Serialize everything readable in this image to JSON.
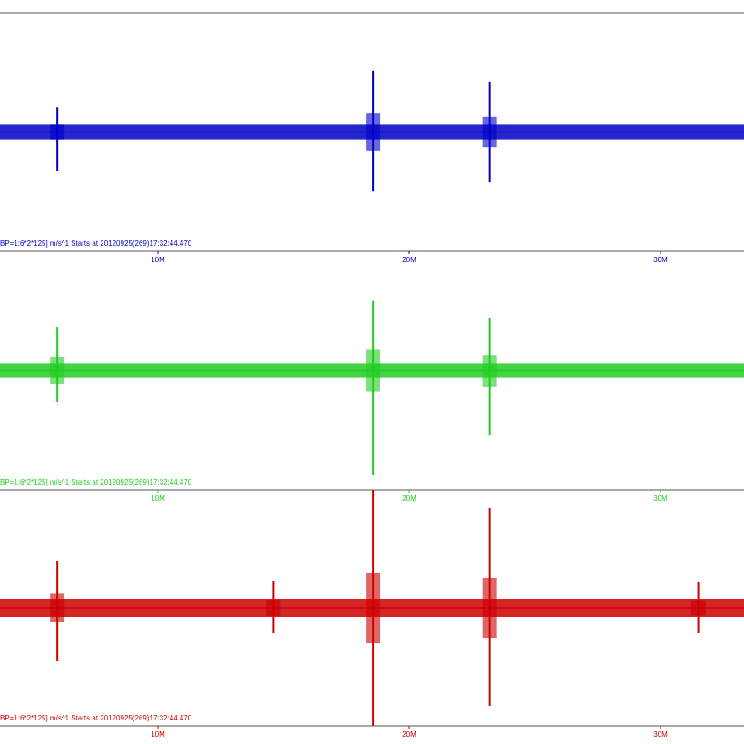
{
  "panels": [
    {
      "color": "#0000c8",
      "caption": "BP=1:6*2*125] m/s^1 Starts at 20120925(269)17:32:44.470",
      "xlim": [
        3.72,
        33.32
      ],
      "ylim": [
        -130,
        130
      ],
      "xticks": [
        {
          "value": 10,
          "label": "10M"
        },
        {
          "value": 20,
          "label": "20M"
        },
        {
          "value": 30,
          "label": "30M"
        }
      ],
      "noise": 8,
      "events": [
        {
          "time": 6.0,
          "high": 27,
          "low": -43
        },
        {
          "time": 18.56,
          "high": 67,
          "low": -65
        },
        {
          "time": 23.2,
          "high": 55,
          "low": -55
        }
      ]
    },
    {
      "color": "#22cc22",
      "caption": "BP=1:6*2*125] m/s^1 Starts at 20120925(269)17:32:44.470",
      "xlim": [
        3.72,
        33.32
      ],
      "ylim": [
        -130,
        130
      ],
      "xticks": [
        {
          "value": 10,
          "label": "10M"
        },
        {
          "value": 20,
          "label": "20M"
        },
        {
          "value": 30,
          "label": "30M"
        }
      ],
      "noise": 8,
      "events": [
        {
          "time": 6.0,
          "high": 48,
          "low": -34
        },
        {
          "time": 18.56,
          "high": 76,
          "low": -114
        },
        {
          "time": 23.2,
          "high": 57,
          "low": -70
        }
      ]
    },
    {
      "color": "#cc0000",
      "caption": "BP=1:6*2*125] m/s^1 Starts at 20120925(269)17:32:44.470",
      "xlim": [
        3.72,
        33.32
      ],
      "ylim": [
        -130,
        130
      ],
      "xticks": [
        {
          "value": 10,
          "label": "10M"
        },
        {
          "value": 20,
          "label": "20M"
        },
        {
          "value": 30,
          "label": "30M"
        }
      ],
      "noise": 10,
      "events": [
        {
          "time": 6.0,
          "high": 52,
          "low": -58
        },
        {
          "time": 14.6,
          "high": 30,
          "low": -28
        },
        {
          "time": 18.56,
          "high": 130,
          "low": -130
        },
        {
          "time": 23.2,
          "high": 110,
          "low": -108
        },
        {
          "time": 31.5,
          "high": 28,
          "low": -28
        }
      ]
    }
  ]
}
